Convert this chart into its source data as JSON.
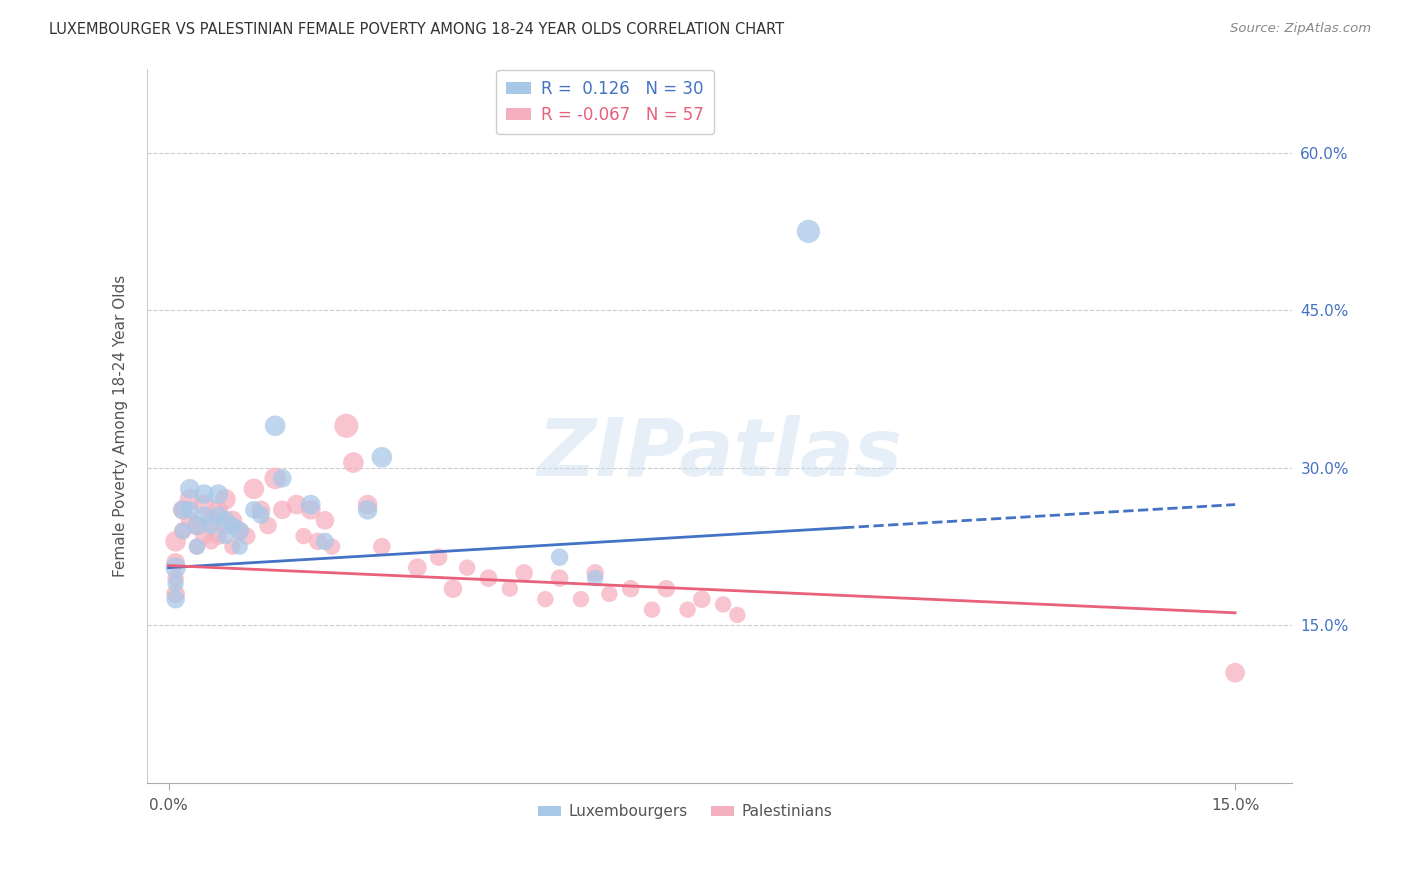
{
  "title": "LUXEMBOURGER VS PALESTINIAN FEMALE POVERTY AMONG 18-24 YEAR OLDS CORRELATION CHART",
  "source": "Source: ZipAtlas.com",
  "ylabel": "Female Poverty Among 18-24 Year Olds",
  "xlim": [
    -0.003,
    0.158
  ],
  "ylim": [
    0.0,
    0.68
  ],
  "xtick_labels": [
    "0.0%",
    "15.0%"
  ],
  "xtick_values": [
    0.0,
    0.15
  ],
  "ytick_values": [
    0.15,
    0.3,
    0.45,
    0.6
  ],
  "ytick_labels": [
    "15.0%",
    "30.0%",
    "45.0%",
    "60.0%"
  ],
  "lux_R": 0.126,
  "lux_N": 30,
  "pal_R": -0.067,
  "pal_N": 57,
  "lux_color": "#a8c8e8",
  "pal_color": "#f5b0c0",
  "lux_line_color": "#4472c4",
  "pal_line_color": "#e8607a",
  "watermark_text": "ZIPatlas",
  "background_color": "#ffffff",
  "grid_color": "#cccccc",
  "lux_line_solid_end": 0.095,
  "lux_line_x0": 0.0,
  "lux_line_y0": 0.205,
  "lux_line_x1": 0.15,
  "lux_line_y1": 0.265,
  "pal_line_x0": 0.0,
  "pal_line_y0": 0.207,
  "pal_line_x1": 0.15,
  "pal_line_y1": 0.162,
  "lux_scatter_x": [
    0.001,
    0.001,
    0.001,
    0.002,
    0.002,
    0.003,
    0.003,
    0.004,
    0.004,
    0.005,
    0.005,
    0.006,
    0.007,
    0.007,
    0.008,
    0.008,
    0.009,
    0.01,
    0.01,
    0.012,
    0.013,
    0.015,
    0.016,
    0.02,
    0.022,
    0.028,
    0.03,
    0.055,
    0.06,
    0.09
  ],
  "lux_scatter_y": [
    0.205,
    0.19,
    0.175,
    0.26,
    0.24,
    0.28,
    0.26,
    0.245,
    0.225,
    0.275,
    0.255,
    0.245,
    0.275,
    0.255,
    0.25,
    0.235,
    0.245,
    0.24,
    0.225,
    0.26,
    0.255,
    0.34,
    0.29,
    0.265,
    0.23,
    0.26,
    0.31,
    0.215,
    0.195,
    0.525
  ],
  "lux_scatter_size": [
    55,
    35,
    45,
    45,
    35,
    50,
    40,
    45,
    35,
    50,
    40,
    40,
    50,
    40,
    45,
    35,
    40,
    45,
    35,
    40,
    40,
    55,
    45,
    50,
    40,
    50,
    55,
    40,
    35,
    70
  ],
  "pal_scatter_x": [
    0.001,
    0.001,
    0.001,
    0.001,
    0.002,
    0.002,
    0.003,
    0.003,
    0.004,
    0.004,
    0.005,
    0.005,
    0.006,
    0.006,
    0.007,
    0.007,
    0.008,
    0.008,
    0.009,
    0.009,
    0.01,
    0.011,
    0.012,
    0.013,
    0.014,
    0.015,
    0.016,
    0.018,
    0.019,
    0.02,
    0.021,
    0.022,
    0.023,
    0.025,
    0.026,
    0.028,
    0.03,
    0.035,
    0.038,
    0.04,
    0.042,
    0.045,
    0.048,
    0.05,
    0.053,
    0.055,
    0.058,
    0.06,
    0.062,
    0.065,
    0.068,
    0.07,
    0.073,
    0.075,
    0.078,
    0.08,
    0.15
  ],
  "pal_scatter_y": [
    0.23,
    0.21,
    0.195,
    0.18,
    0.26,
    0.24,
    0.27,
    0.25,
    0.245,
    0.225,
    0.265,
    0.235,
    0.25,
    0.23,
    0.26,
    0.235,
    0.27,
    0.245,
    0.25,
    0.225,
    0.24,
    0.235,
    0.28,
    0.26,
    0.245,
    0.29,
    0.26,
    0.265,
    0.235,
    0.26,
    0.23,
    0.25,
    0.225,
    0.34,
    0.305,
    0.265,
    0.225,
    0.205,
    0.215,
    0.185,
    0.205,
    0.195,
    0.185,
    0.2,
    0.175,
    0.195,
    0.175,
    0.2,
    0.18,
    0.185,
    0.165,
    0.185,
    0.165,
    0.175,
    0.17,
    0.16,
    0.105
  ],
  "pal_scatter_size": [
    55,
    45,
    35,
    45,
    50,
    40,
    55,
    40,
    50,
    35,
    55,
    40,
    50,
    35,
    50,
    40,
    55,
    40,
    50,
    35,
    45,
    40,
    55,
    45,
    40,
    60,
    45,
    50,
    35,
    50,
    40,
    45,
    35,
    75,
    55,
    50,
    40,
    45,
    40,
    45,
    35,
    40,
    35,
    40,
    35,
    40,
    35,
    40,
    35,
    40,
    35,
    40,
    35,
    40,
    35,
    35,
    50
  ]
}
